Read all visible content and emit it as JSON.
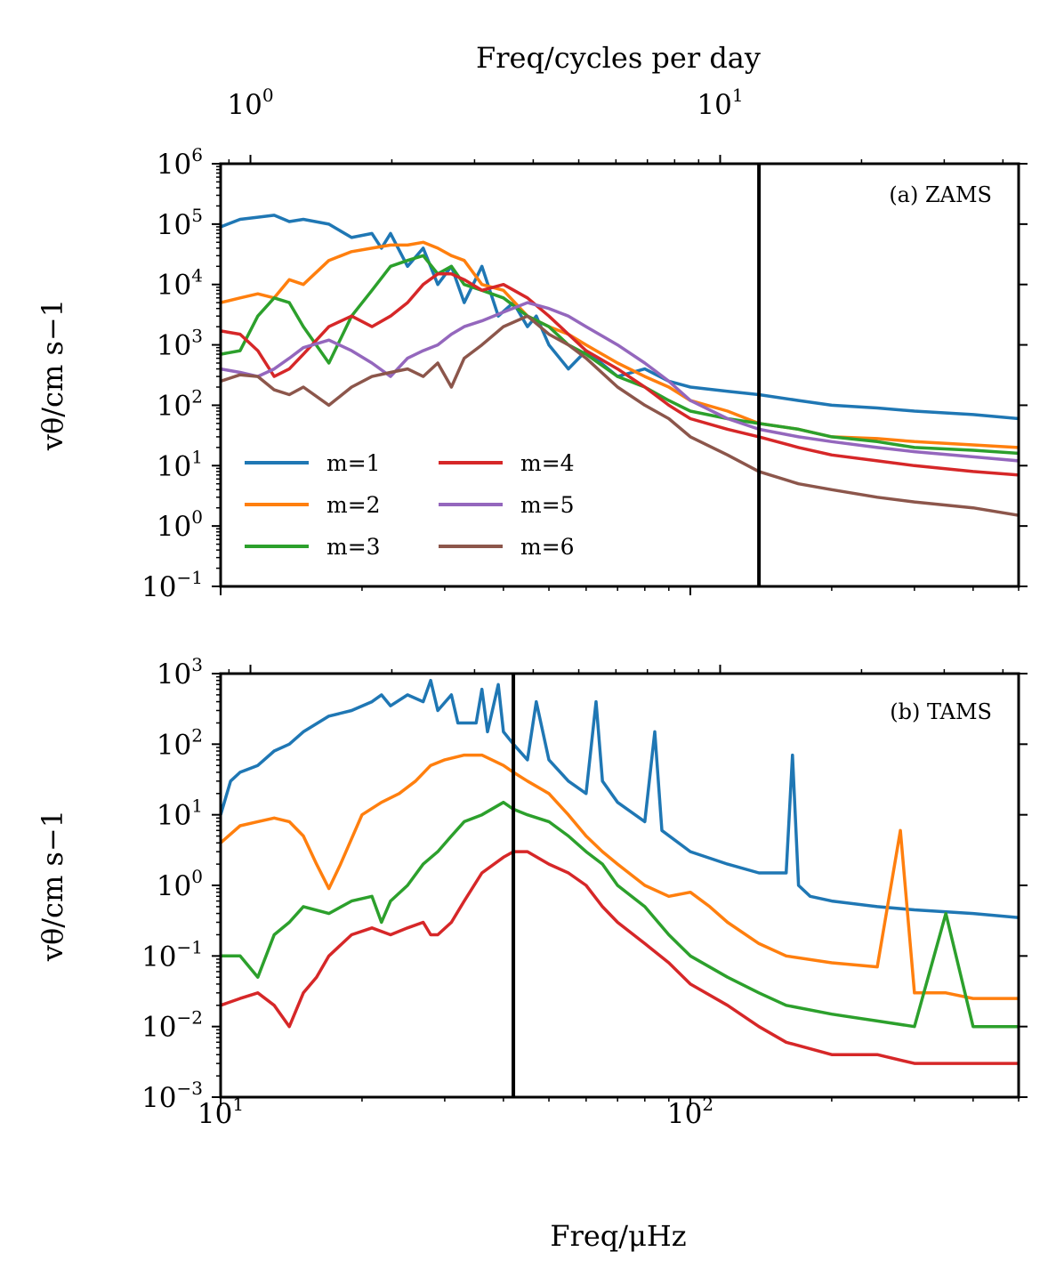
{
  "chart_data": {
    "type": "line",
    "top_axis": {
      "label": "Freq/cycles per day",
      "ticks": [
        {
          "value": 1,
          "base": "10",
          "exp": "0"
        },
        {
          "value": 10,
          "base": "10",
          "exp": "1"
        }
      ]
    },
    "xlabel": "Freq/μHz",
    "xscale": "log",
    "xlim": [
      10,
      500
    ],
    "x_ticks": [
      {
        "value": 10,
        "base": "10",
        "exp": "1"
      },
      {
        "value": 100,
        "base": "10",
        "exp": "2"
      }
    ],
    "legend": {
      "placement": "lower-left",
      "entries": [
        "m=1",
        "m=2",
        "m=3",
        "m=4",
        "m=5",
        "m=6"
      ]
    },
    "colors": {
      "m=1": "#1f77b4",
      "m=2": "#ff7f0e",
      "m=3": "#2ca02c",
      "m=4": "#d62728",
      "m=5": "#9467bd",
      "m=6": "#8c564b"
    },
    "panels": [
      {
        "label": "(a) ZAMS",
        "ylabel": "vθ/cm s−1",
        "yscale": "log",
        "ylim": [
          0.1,
          1000000
        ],
        "y_ticks": [
          {
            "value": 0.1,
            "exp": "−1"
          },
          {
            "value": 1,
            "exp": "0"
          },
          {
            "value": 10,
            "exp": "1"
          },
          {
            "value": 100,
            "exp": "2"
          },
          {
            "value": 1000,
            "exp": "3"
          },
          {
            "value": 10000,
            "exp": "4"
          },
          {
            "value": 100000,
            "exp": "5"
          },
          {
            "value": 1000000,
            "exp": "6"
          }
        ],
        "vline_x": 140,
        "series": [
          {
            "name": "m=1",
            "x": [
              10,
              11,
              12,
              13,
              14,
              15,
              17,
              19,
              21,
              22,
              23,
              25,
              27,
              29,
              31,
              33,
              36,
              39,
              42,
              45,
              47,
              50,
              55,
              60,
              70,
              80,
              90,
              100,
              120,
              140,
              170,
              200,
              250,
              300,
              400,
              500
            ],
            "y": [
              90000,
              120000,
              130000,
              140000,
              110000,
              120000,
              100000,
              60000,
              70000,
              40000,
              70000,
              20000,
              40000,
              10000,
              20000,
              5000,
              20000,
              3000,
              5000,
              2000,
              3000,
              1000,
              400,
              800,
              300,
              400,
              250,
              200,
              170,
              150,
              120,
              100,
              90,
              80,
              70,
              60
            ]
          },
          {
            "name": "m=2",
            "x": [
              10,
              11,
              12,
              13,
              14,
              15,
              17,
              19,
              21,
              23,
              25,
              27,
              29,
              31,
              33,
              36,
              40,
              45,
              50,
              55,
              60,
              70,
              80,
              90,
              100,
              120,
              140,
              170,
              200,
              250,
              300,
              400,
              500
            ],
            "y": [
              5000,
              6000,
              7000,
              6000,
              12000,
              10000,
              25000,
              35000,
              40000,
              45000,
              45000,
              50000,
              40000,
              30000,
              25000,
              10000,
              8000,
              3000,
              2000,
              1500,
              1000,
              500,
              300,
              200,
              120,
              80,
              50,
              40,
              30,
              28,
              25,
              22,
              20
            ]
          },
          {
            "name": "m=3",
            "x": [
              10,
              11,
              12,
              13,
              14,
              15,
              17,
              19,
              21,
              23,
              25,
              27,
              29,
              31,
              33,
              36,
              40,
              45,
              50,
              55,
              60,
              70,
              80,
              90,
              100,
              120,
              140,
              170,
              200,
              250,
              300,
              400,
              500
            ],
            "y": [
              700,
              800,
              3000,
              6000,
              5000,
              2000,
              500,
              3000,
              8000,
              20000,
              25000,
              30000,
              15000,
              20000,
              10000,
              8000,
              6000,
              3000,
              2000,
              1000,
              700,
              300,
              200,
              120,
              80,
              60,
              50,
              40,
              30,
              25,
              20,
              18,
              16
            ]
          },
          {
            "name": "m=4",
            "x": [
              10,
              11,
              12,
              13,
              14,
              15,
              17,
              19,
              21,
              23,
              25,
              27,
              29,
              31,
              33,
              36,
              40,
              45,
              50,
              55,
              60,
              70,
              80,
              90,
              100,
              120,
              140,
              170,
              200,
              250,
              300,
              400,
              500
            ],
            "y": [
              1700,
              1500,
              800,
              300,
              400,
              700,
              2000,
              3000,
              2000,
              3000,
              5000,
              10000,
              15000,
              15000,
              12000,
              8000,
              10000,
              6000,
              3000,
              1500,
              800,
              400,
              200,
              100,
              60,
              40,
              30,
              20,
              15,
              12,
              10,
              8,
              7
            ]
          },
          {
            "name": "m=5",
            "x": [
              10,
              11,
              12,
              13,
              14,
              15,
              17,
              19,
              21,
              23,
              25,
              27,
              29,
              31,
              33,
              36,
              40,
              45,
              50,
              55,
              60,
              70,
              80,
              90,
              100,
              120,
              140,
              170,
              200,
              250,
              300,
              400,
              500
            ],
            "y": [
              400,
              350,
              300,
              400,
              600,
              900,
              1200,
              800,
              500,
              300,
              600,
              800,
              1000,
              1500,
              2000,
              2500,
              3500,
              5000,
              4000,
              3000,
              2000,
              1000,
              500,
              250,
              120,
              60,
              40,
              30,
              25,
              20,
              17,
              14,
              12
            ]
          },
          {
            "name": "m=6",
            "x": [
              10,
              11,
              12,
              13,
              14,
              15,
              17,
              19,
              21,
              23,
              25,
              27,
              29,
              31,
              33,
              36,
              40,
              45,
              50,
              55,
              60,
              70,
              80,
              90,
              100,
              120,
              140,
              170,
              200,
              250,
              300,
              400,
              500
            ],
            "y": [
              250,
              320,
              300,
              180,
              150,
              200,
              100,
              200,
              300,
              350,
              400,
              300,
              500,
              200,
              600,
              1000,
              2000,
              3000,
              1500,
              1000,
              600,
              200,
              100,
              60,
              30,
              15,
              8,
              5,
              4,
              3,
              2.5,
              2,
              1.5
            ]
          }
        ]
      },
      {
        "label": "(b) TAMS",
        "ylabel": "vθ/cm s−1",
        "yscale": "log",
        "ylim": [
          0.001,
          1000
        ],
        "y_ticks": [
          {
            "value": 0.001,
            "exp": "−3"
          },
          {
            "value": 0.01,
            "exp": "−2"
          },
          {
            "value": 0.1,
            "exp": "−1"
          },
          {
            "value": 1,
            "exp": "0"
          },
          {
            "value": 10,
            "exp": "1"
          },
          {
            "value": 100,
            "exp": "2"
          },
          {
            "value": 1000,
            "exp": "3"
          }
        ],
        "vline_x": 42,
        "series": [
          {
            "name": "m=1",
            "x": [
              10,
              10.5,
              11,
              12,
              13,
              14,
              15,
              17,
              19,
              21,
              22,
              23,
              25,
              27,
              28,
              29,
              31,
              32,
              35,
              36,
              37,
              39,
              40,
              42,
              45,
              47,
              50,
              55,
              60,
              63,
              65,
              70,
              80,
              84,
              87,
              100,
              120,
              140,
              160,
              165,
              170,
              180,
              200,
              250,
              300,
              400,
              500
            ],
            "y": [
              10,
              30,
              40,
              50,
              80,
              100,
              150,
              250,
              300,
              400,
              500,
              350,
              500,
              400,
              800,
              300,
              500,
              200,
              200,
              600,
              150,
              700,
              150,
              100,
              60,
              400,
              60,
              30,
              20,
              400,
              30,
              15,
              8,
              150,
              6,
              3,
              2,
              1.5,
              1.5,
              70,
              1,
              0.7,
              0.6,
              0.5,
              0.45,
              0.4,
              0.35
            ]
          },
          {
            "name": "m=2",
            "x": [
              10,
              11,
              12,
              13,
              14,
              15,
              16,
              17,
              18,
              20,
              22,
              24,
              26,
              28,
              30,
              33,
              36,
              40,
              42,
              45,
              50,
              55,
              60,
              65,
              70,
              80,
              90,
              100,
              110,
              120,
              140,
              160,
              200,
              250,
              280,
              300,
              350,
              400,
              500
            ],
            "y": [
              4,
              7,
              8,
              9,
              8,
              5,
              2,
              0.9,
              2,
              10,
              15,
              20,
              30,
              50,
              60,
              70,
              70,
              50,
              40,
              30,
              20,
              10,
              5,
              3,
              2,
              1,
              0.7,
              0.8,
              0.5,
              0.3,
              0.15,
              0.1,
              0.08,
              0.07,
              6,
              0.03,
              0.03,
              0.025,
              0.025
            ]
          },
          {
            "name": "m=3",
            "x": [
              10,
              11,
              12,
              13,
              14,
              15,
              17,
              19,
              21,
              22,
              23,
              25,
              27,
              29,
              31,
              33,
              36,
              40,
              42,
              45,
              50,
              55,
              60,
              65,
              70,
              80,
              90,
              100,
              120,
              140,
              160,
              200,
              250,
              300,
              350,
              400,
              500
            ],
            "y": [
              0.1,
              0.1,
              0.05,
              0.2,
              0.3,
              0.5,
              0.4,
              0.6,
              0.7,
              0.3,
              0.6,
              1,
              2,
              3,
              5,
              8,
              10,
              15,
              12,
              10,
              8,
              5,
              3,
              2,
              1,
              0.5,
              0.2,
              0.1,
              0.05,
              0.03,
              0.02,
              0.015,
              0.012,
              0.01,
              0.4,
              0.01,
              0.01
            ]
          },
          {
            "name": "m=4",
            "x": [
              10,
              11,
              12,
              13,
              14,
              15,
              16,
              17,
              19,
              21,
              23,
              25,
              27,
              28,
              29,
              31,
              33,
              36,
              40,
              42,
              45,
              50,
              55,
              60,
              65,
              70,
              80,
              90,
              100,
              120,
              140,
              160,
              200,
              250,
              300,
              400,
              500
            ],
            "y": [
              0.02,
              0.025,
              0.03,
              0.02,
              0.01,
              0.03,
              0.05,
              0.1,
              0.2,
              0.25,
              0.2,
              0.25,
              0.3,
              0.2,
              0.2,
              0.3,
              0.6,
              1.5,
              2.5,
              3,
              3,
              2,
              1.5,
              1,
              0.5,
              0.3,
              0.15,
              0.08,
              0.04,
              0.02,
              0.01,
              0.006,
              0.004,
              0.004,
              0.003,
              0.003,
              0.003
            ]
          }
        ]
      }
    ]
  }
}
